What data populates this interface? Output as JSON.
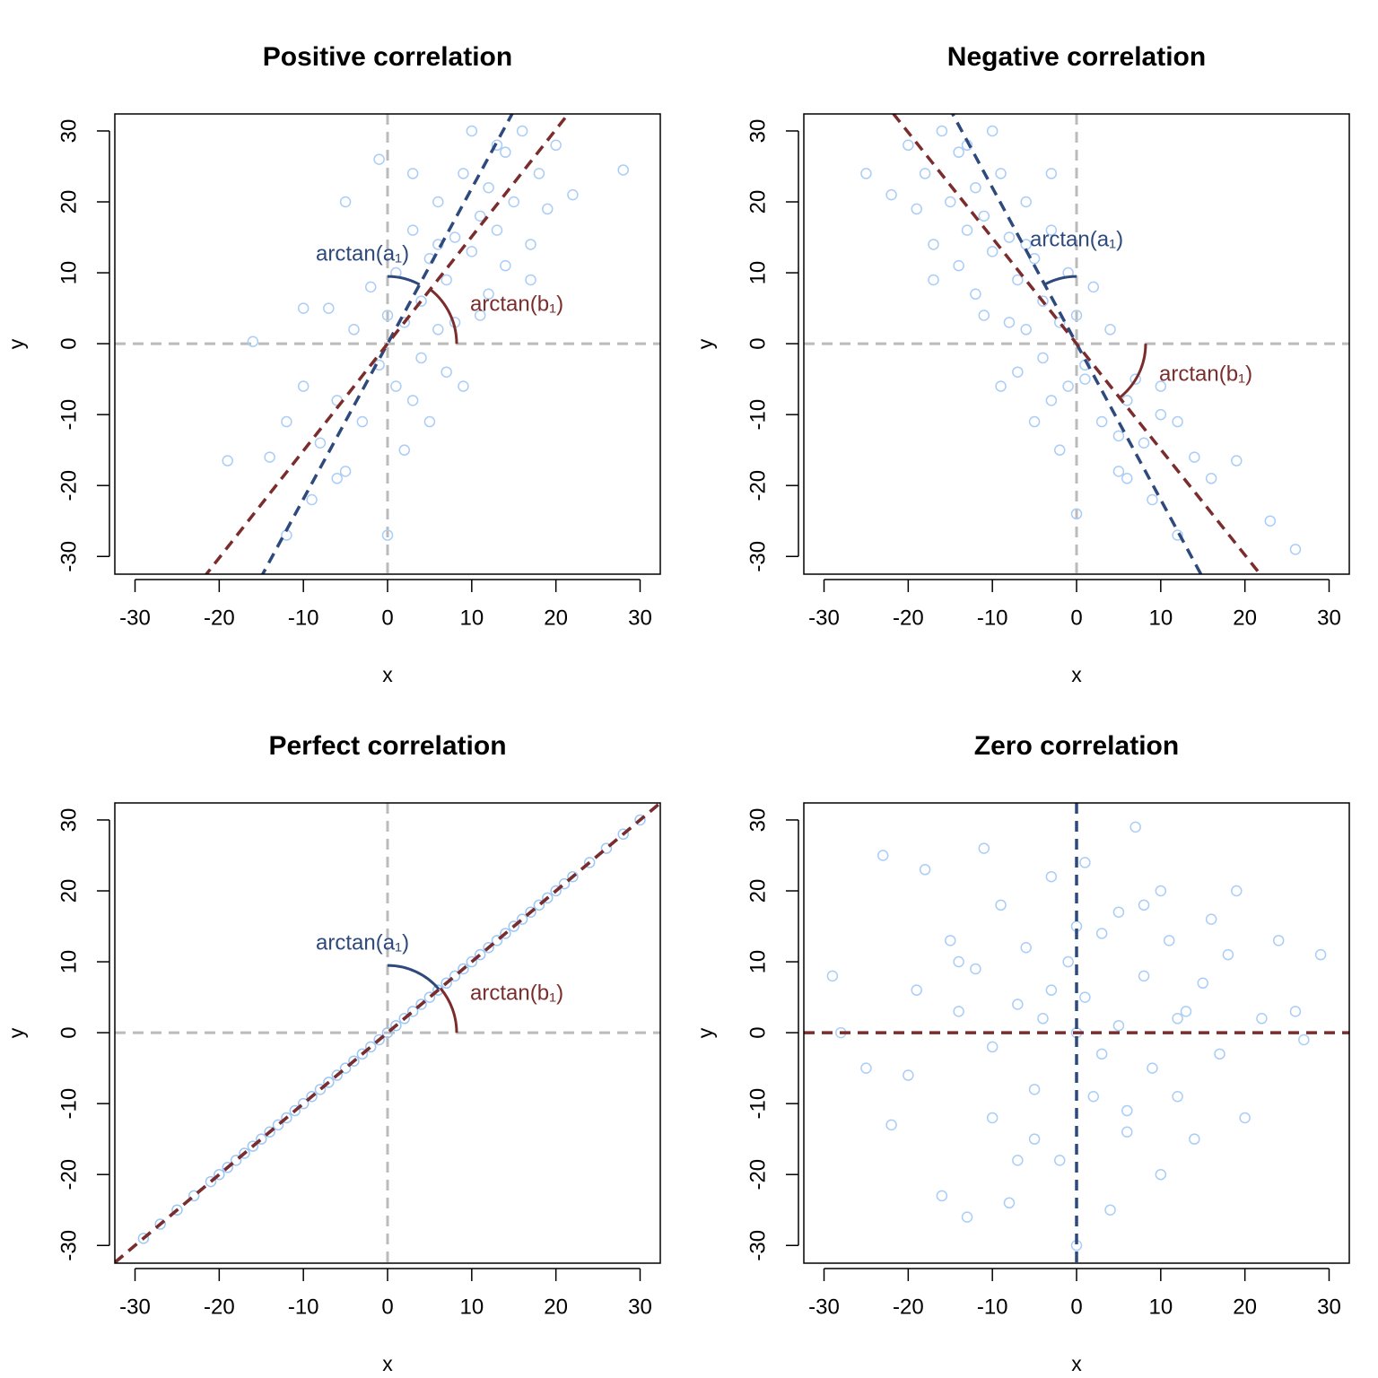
{
  "chart_data": [
    {
      "type": "scatter",
      "title": "Positive correlation",
      "xlabel": "x",
      "ylabel": "y",
      "xlim": [
        -32.4,
        32.4
      ],
      "ylim": [
        -32.5,
        32.4
      ],
      "xticks": [
        -30,
        -20,
        -10,
        0,
        10,
        20,
        30
      ],
      "yticks": [
        -30,
        -20,
        -10,
        0,
        10,
        20,
        30
      ],
      "reference_color": "#bbbbbb",
      "reference_lines": {
        "x": 0,
        "y": 0
      },
      "color": "#aacdf7",
      "x": [
        -19,
        -16,
        -14,
        -12,
        -10,
        -9,
        -8,
        -7,
        -6,
        -5,
        -4,
        -3,
        -2,
        -1,
        0,
        0,
        1,
        1,
        2,
        2,
        3,
        3,
        4,
        4,
        5,
        5,
        6,
        6,
        7,
        7,
        8,
        8,
        9,
        9,
        10,
        10,
        11,
        12,
        12,
        13,
        14,
        14,
        15,
        16,
        17,
        18,
        19,
        20,
        22,
        -1,
        28,
        -10,
        -5,
        -12,
        -6,
        3,
        11,
        13,
        17,
        6
      ],
      "y": [
        -16.5,
        0.3,
        -16,
        -11,
        -6,
        -22,
        -14,
        5,
        -8,
        -18,
        2,
        -11,
        8,
        -3,
        4,
        -27,
        -6,
        10,
        -15,
        3,
        -8,
        16,
        6,
        -2,
        12,
        -11,
        2,
        20,
        9,
        -4,
        15,
        3,
        24,
        -6,
        13,
        30,
        18,
        7,
        22,
        16,
        27,
        11,
        20,
        30,
        14,
        24,
        19,
        28,
        21,
        26,
        24.5,
        5,
        20,
        -27,
        -19,
        24,
        4,
        28,
        9,
        14
      ],
      "lines": [
        {
          "slope": 2.19,
          "color": "#2e4a7d",
          "label": "arctan(a₁)"
        },
        {
          "slope": 1.51,
          "color": "#7b2d2d",
          "label": "arctan(b₁)"
        }
      ]
    },
    {
      "type": "scatter",
      "title": "Negative correlation",
      "xlabel": "x",
      "ylabel": "y",
      "xlim": [
        -32.4,
        32.4
      ],
      "ylim": [
        -32.5,
        32.4
      ],
      "xticks": [
        -30,
        -20,
        -10,
        0,
        10,
        20,
        30
      ],
      "yticks": [
        -30,
        -20,
        -10,
        0,
        10,
        20,
        30
      ],
      "reference_color": "#bbbbbb",
      "reference_lines": {
        "x": 0,
        "y": 0
      },
      "color": "#aacdf7",
      "x": [
        19,
        16,
        14,
        12,
        10,
        9,
        8,
        7,
        6,
        5,
        4,
        3,
        2,
        1,
        0,
        0,
        -1,
        -1,
        -2,
        -2,
        -3,
        -3,
        -4,
        -4,
        -5,
        -5,
        -6,
        -6,
        -7,
        -7,
        -8,
        -8,
        -9,
        -9,
        -10,
        -10,
        -11,
        -12,
        -12,
        -13,
        -14,
        -14,
        -15,
        -16,
        -17,
        -18,
        -19,
        -20,
        -22,
        1,
        -25,
        10,
        5,
        12,
        6,
        -3,
        -11,
        -13,
        -17,
        -6,
        26,
        23
      ],
      "y": [
        -16.5,
        -19,
        -16,
        -11,
        -6,
        -22,
        -14,
        -5,
        -8,
        -18,
        2,
        -11,
        8,
        -3,
        4,
        -24,
        -6,
        10,
        -15,
        3,
        -8,
        16,
        6,
        -2,
        12,
        -11,
        2,
        20,
        9,
        -4,
        15,
        3,
        24,
        -6,
        13,
        30,
        18,
        7,
        22,
        16,
        27,
        11,
        20,
        30,
        14,
        24,
        19,
        28,
        21,
        -5,
        24,
        -10,
        -13,
        -27,
        -19,
        24,
        4,
        28,
        9,
        14,
        -29,
        -25
      ],
      "lines": [
        {
          "slope": -2.2,
          "color": "#2e4a7d",
          "label": "arctan(a₁)"
        },
        {
          "slope": -1.49,
          "color": "#7b2d2d",
          "label": "arctan(b₁)"
        }
      ]
    },
    {
      "type": "scatter",
      "title": "Perfect correlation",
      "xlabel": "x",
      "ylabel": "y",
      "xlim": [
        -32.4,
        32.4
      ],
      "ylim": [
        -32.5,
        32.4
      ],
      "xticks": [
        -30,
        -20,
        -10,
        0,
        10,
        20,
        30
      ],
      "yticks": [
        -30,
        -20,
        -10,
        0,
        10,
        20,
        30
      ],
      "reference_color": "#bbbbbb",
      "reference_lines": {
        "x": 0,
        "y": 0
      },
      "color": "#9ec7f5",
      "x": [
        -29,
        -27,
        -25,
        -23,
        -21,
        -20,
        -19,
        -18,
        -17,
        -16,
        -15,
        -14,
        -13,
        -12,
        -11,
        -10,
        -9,
        -8,
        -7,
        -6,
        -5,
        -4,
        -3,
        -2,
        -1,
        0,
        1,
        2,
        3,
        4,
        5,
        6,
        7,
        8,
        9,
        10,
        11,
        12,
        13,
        14,
        15,
        16,
        17,
        18,
        19,
        20,
        21,
        22,
        24,
        26,
        28,
        30
      ],
      "y": [
        -29,
        -27,
        -25,
        -23,
        -21,
        -20,
        -19,
        -18,
        -17,
        -16,
        -15,
        -14,
        -13,
        -12,
        -11,
        -10,
        -9,
        -8,
        -7,
        -6,
        -5,
        -4,
        -3,
        -2,
        -1,
        0,
        1,
        2,
        3,
        4,
        5,
        6,
        7,
        8,
        9,
        10,
        11,
        12,
        13,
        14,
        15,
        16,
        17,
        18,
        19,
        20,
        21,
        22,
        24,
        26,
        28,
        30
      ],
      "lines": [
        {
          "slope": 1,
          "color": "#2e4a7d",
          "label": "arctan(a₁)"
        },
        {
          "slope": 1,
          "color": "#7b2d2d",
          "label": "arctan(b₁)"
        }
      ]
    },
    {
      "type": "scatter",
      "title": "Zero correlation",
      "xlabel": "x",
      "ylabel": "y",
      "xlim": [
        -32.4,
        32.4
      ],
      "ylim": [
        -32.5,
        32.4
      ],
      "xticks": [
        -30,
        -20,
        -10,
        0,
        10,
        20,
        30
      ],
      "yticks": [
        -30,
        -20,
        -10,
        0,
        10,
        20,
        30
      ],
      "color": "#aacdf7",
      "x": [
        -29,
        -28,
        -25,
        -23,
        -22,
        -20,
        -19,
        -18,
        -16,
        -15,
        -14,
        -13,
        -12,
        -11,
        -10,
        -10,
        -9,
        -8,
        -7,
        -6,
        -5,
        -5,
        -4,
        -3,
        -2,
        -1,
        0,
        0,
        1,
        1,
        2,
        3,
        4,
        5,
        5,
        6,
        7,
        8,
        9,
        10,
        10,
        11,
        12,
        13,
        14,
        15,
        16,
        17,
        18,
        19,
        20,
        22,
        24,
        26,
        27,
        29,
        -14,
        -3,
        3,
        8,
        12,
        -7,
        0,
        6
      ],
      "y": [
        8,
        0,
        -5,
        25,
        -13,
        -6,
        6,
        23,
        -23,
        13,
        3,
        -26,
        9,
        26,
        -2,
        -12,
        18,
        -24,
        4,
        12,
        -8,
        -15,
        2,
        22,
        -18,
        10,
        0,
        -30,
        24,
        5,
        -9,
        14,
        -25,
        17,
        1,
        -14,
        29,
        8,
        -5,
        20,
        -20,
        13,
        -9,
        3,
        -15,
        7,
        16,
        -3,
        11,
        20,
        -12,
        2,
        13,
        3,
        -1,
        11,
        10,
        6,
        -3,
        18,
        2,
        -18,
        15,
        -11
      ],
      "lines": [
        {
          "x": 0,
          "color": "#2e4a7d"
        },
        {
          "slope": 0,
          "color": "#7b2d2d"
        }
      ]
    }
  ]
}
